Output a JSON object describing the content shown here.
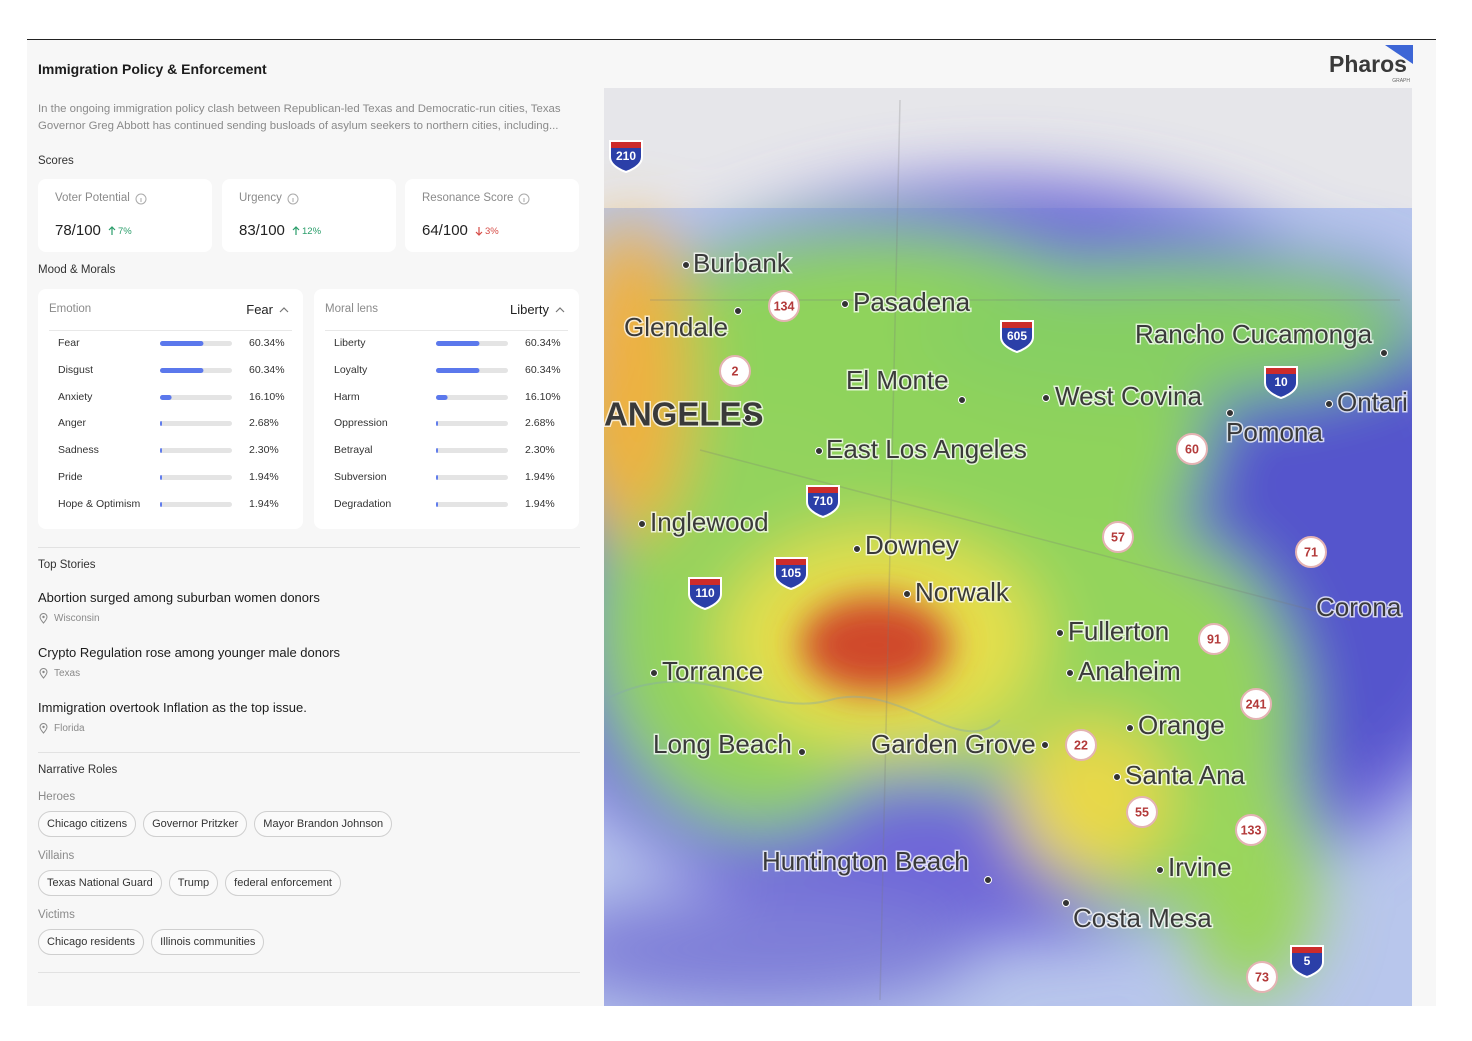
{
  "header": {
    "title": "Immigration Policy & Enforcement",
    "logo": "Pharos",
    "logo_sub": "GRAPH"
  },
  "summary": "In the ongoing immigration policy clash between Republican-led Texas and Democratic-run cities, Texas Governor Greg Abbott has continued sending busloads of asylum seekers to northern cities, including...",
  "scores": {
    "label": "Scores",
    "items": [
      {
        "name": "Voter Potential",
        "value": "78/100",
        "change": "7%",
        "direction": "up"
      },
      {
        "name": "Urgency",
        "value": "83/100",
        "change": "12%",
        "direction": "up"
      },
      {
        "name": "Resonance Score",
        "value": "64/100",
        "change": "3%",
        "direction": "down"
      }
    ]
  },
  "mood": {
    "label": "Mood & Morals",
    "panels": [
      {
        "name": "Emotion",
        "selected": "Fear",
        "rows": [
          {
            "label": "Fear",
            "value": 60.34,
            "value_label": "60.34%"
          },
          {
            "label": "Disgust",
            "value": 60.34,
            "value_label": "60.34%"
          },
          {
            "label": "Anxiety",
            "value": 16.1,
            "value_label": "16.10%"
          },
          {
            "label": "Anger",
            "value": 2.68,
            "value_label": "2.68%"
          },
          {
            "label": "Sadness",
            "value": 2.3,
            "value_label": "2.30%"
          },
          {
            "label": "Pride",
            "value": 1.94,
            "value_label": "1.94%"
          },
          {
            "label": "Hope & Optimism",
            "value": 1.94,
            "value_label": "1.94%"
          }
        ]
      },
      {
        "name": "Moral lens",
        "selected": "Liberty",
        "rows": [
          {
            "label": "Liberty",
            "value": 60.34,
            "value_label": "60.34%"
          },
          {
            "label": "Loyalty",
            "value": 60.34,
            "value_label": "60.34%"
          },
          {
            "label": "Harm",
            "value": 16.1,
            "value_label": "16.10%"
          },
          {
            "label": "Oppression",
            "value": 2.68,
            "value_label": "2.68%"
          },
          {
            "label": "Betrayal",
            "value": 2.3,
            "value_label": "2.30%"
          },
          {
            "label": "Subversion",
            "value": 1.94,
            "value_label": "1.94%"
          },
          {
            "label": "Degradation",
            "value": 1.94,
            "value_label": "1.94%"
          }
        ]
      }
    ]
  },
  "top_stories": {
    "label": "Top Stories",
    "items": [
      {
        "title": "Abortion surged among suburban women donors",
        "location": "Wisconsin"
      },
      {
        "title": "Crypto Regulation rose among younger male donors",
        "location": "Texas"
      },
      {
        "title": "Immigration overtook Inflation as the top issue.",
        "location": "Florida"
      }
    ]
  },
  "narrative_roles": {
    "label": "Narrative Roles",
    "groups": [
      {
        "name": "Heroes",
        "items": [
          "Chicago citizens",
          "Governor Pritzker",
          "Mayor Brandon Johnson"
        ]
      },
      {
        "name": "Villains",
        "items": [
          "Texas National Guard",
          "Trump",
          "federal enforcement"
        ]
      },
      {
        "name": "Victims",
        "items": [
          "Chicago residents",
          "Illinois communities"
        ]
      }
    ]
  },
  "map": {
    "cities": [
      "Burbank",
      "Glendale",
      "Pasadena",
      "Rancho Cucamonga",
      "El Monte",
      "West Covina",
      "Ontari",
      "ANGELES",
      "Pomona",
      "East Los Angeles",
      "Inglewood",
      "Downey",
      "Norwalk",
      "Corona",
      "Fullerton",
      "Torrance",
      "Anaheim",
      "Orange",
      "Long Beach",
      "Garden Grove",
      "Santa Ana",
      "Huntington Beach",
      "Irvine",
      "Costa Mesa"
    ],
    "interstates": [
      "210",
      "605",
      "10",
      "710",
      "105",
      "110",
      "5"
    ],
    "state_routes": [
      "134",
      "2",
      "60",
      "57",
      "71",
      "91",
      "241",
      "22",
      "55",
      "133",
      "73"
    ]
  }
}
